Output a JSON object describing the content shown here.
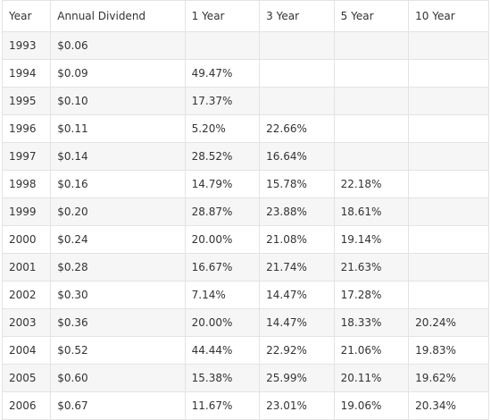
{
  "table": {
    "headers": [
      "Year",
      "Annual Dividend",
      "1 Year",
      "3 Year",
      "5 Year",
      "10 Year"
    ],
    "rows": [
      [
        "1993",
        "$0.06",
        "",
        "",
        "",
        ""
      ],
      [
        "1994",
        "$0.09",
        "49.47%",
        "",
        "",
        ""
      ],
      [
        "1995",
        "$0.10",
        "17.37%",
        "",
        "",
        ""
      ],
      [
        "1996",
        "$0.11",
        "5.20%",
        "22.66%",
        "",
        ""
      ],
      [
        "1997",
        "$0.14",
        "28.52%",
        "16.64%",
        "",
        ""
      ],
      [
        "1998",
        "$0.16",
        "14.79%",
        "15.78%",
        "22.18%",
        ""
      ],
      [
        "1999",
        "$0.20",
        "28.87%",
        "23.88%",
        "18.61%",
        ""
      ],
      [
        "2000",
        "$0.24",
        "20.00%",
        "21.08%",
        "19.14%",
        ""
      ],
      [
        "2001",
        "$0.28",
        "16.67%",
        "21.74%",
        "21.63%",
        ""
      ],
      [
        "2002",
        "$0.30",
        "7.14%",
        "14.47%",
        "17.28%",
        ""
      ],
      [
        "2003",
        "$0.36",
        "20.00%",
        "14.47%",
        "18.33%",
        "20.24%"
      ],
      [
        "2004",
        "$0.52",
        "44.44%",
        "22.92%",
        "21.06%",
        "19.83%"
      ],
      [
        "2005",
        "$0.60",
        "15.38%",
        "25.99%",
        "20.11%",
        "19.62%"
      ],
      [
        "2006",
        "$0.67",
        "11.67%",
        "23.01%",
        "19.06%",
        "20.34%"
      ]
    ]
  }
}
